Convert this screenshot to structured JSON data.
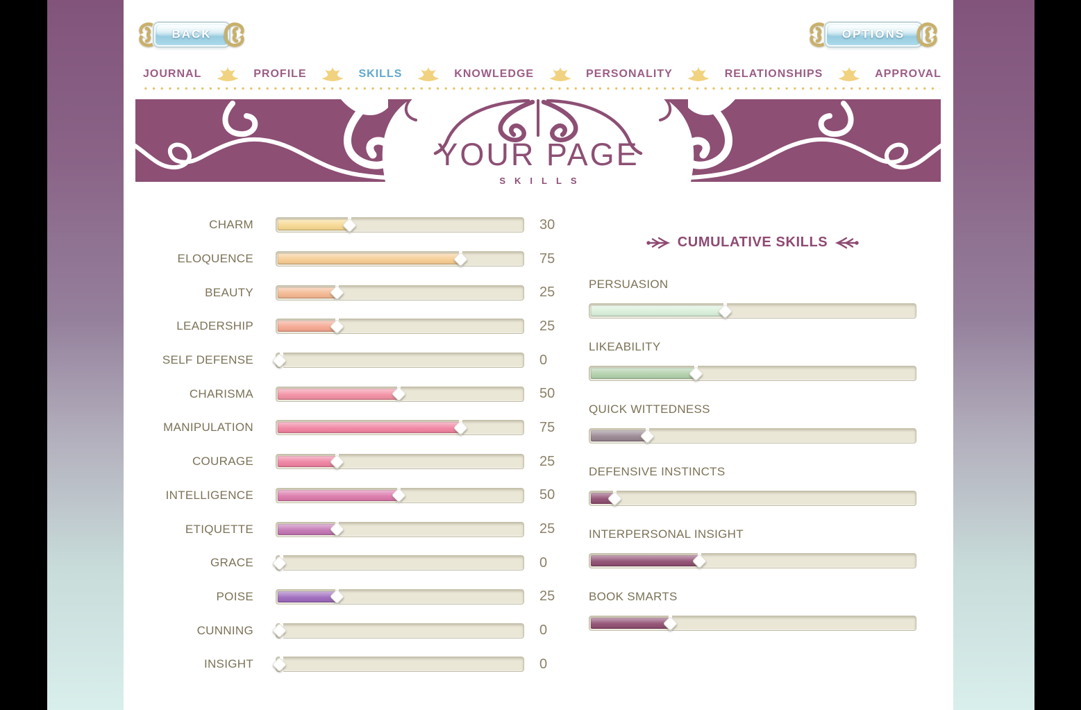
{
  "buttons": {
    "back": "BACK",
    "options": "OPTIONS"
  },
  "nav": {
    "tabs": [
      {
        "label": "JOURNAL",
        "active": false
      },
      {
        "label": "PROFILE",
        "active": false
      },
      {
        "label": "SKILLS",
        "active": true
      },
      {
        "label": "KNOWLEDGE",
        "active": false
      },
      {
        "label": "PERSONALITY",
        "active": false
      },
      {
        "label": "RELATIONSHIPS",
        "active": false
      },
      {
        "label": "APPROVAL",
        "active": false
      }
    ]
  },
  "banner": {
    "title": "YOUR PAGE",
    "subtitle": "SKILLS"
  },
  "skills": {
    "rows": [
      {
        "label": "CHARM",
        "value": 30,
        "color": "#f6d78e"
      },
      {
        "label": "ELOQUENCE",
        "value": 75,
        "color": "#f6ca8f"
      },
      {
        "label": "BEAUTY",
        "value": 25,
        "color": "#f4b68f"
      },
      {
        "label": "LEADERSHIP",
        "value": 25,
        "color": "#f4a48c"
      },
      {
        "label": "SELF DEFENSE",
        "value": 0,
        "color": "#f59aa0"
      },
      {
        "label": "CHARISMA",
        "value": 50,
        "color": "#f28da1"
      },
      {
        "label": "MANIPULATION",
        "value": 75,
        "color": "#f0809e"
      },
      {
        "label": "COURAGE",
        "value": 25,
        "color": "#ee7e9f"
      },
      {
        "label": "INTELLIGENCE",
        "value": 50,
        "color": "#da76a9"
      },
      {
        "label": "ETIQUETTE",
        "value": 25,
        "color": "#c172b2"
      },
      {
        "label": "GRACE",
        "value": 0,
        "color": "#b06cba"
      },
      {
        "label": "POISE",
        "value": 25,
        "color": "#9a66bb"
      },
      {
        "label": "CUNNING",
        "value": 0,
        "color": "#9673c6"
      },
      {
        "label": "INSIGHT",
        "value": 0,
        "color": "#9a7ccb"
      }
    ]
  },
  "cumulative": {
    "title": "CUMULATIVE SKILLS",
    "rows": [
      {
        "label": "PERSUASION",
        "percent": 42,
        "color": "#d8efd9"
      },
      {
        "label": "LIKEABILITY",
        "percent": 33,
        "color": "#afcfa9"
      },
      {
        "label": "QUICK WITTEDNESS",
        "percent": 18,
        "color": "#95828e"
      },
      {
        "label": "DEFENSIVE INSTINCTS",
        "percent": 8,
        "color": "#8d4a6e"
      },
      {
        "label": "INTERPERSONAL INSIGHT",
        "percent": 34,
        "color": "#8d4a6e"
      },
      {
        "label": "BOOK SMARTS",
        "percent": 25,
        "color": "#8d4a6e"
      }
    ]
  },
  "colors": {
    "banner": "#8d4f74",
    "nav_text": "#9a5d85",
    "nav_active": "#5fa8cf",
    "crown": "#f1d280",
    "label": "#7b7257",
    "value": "#8b8169",
    "header": "#8e4a72"
  }
}
